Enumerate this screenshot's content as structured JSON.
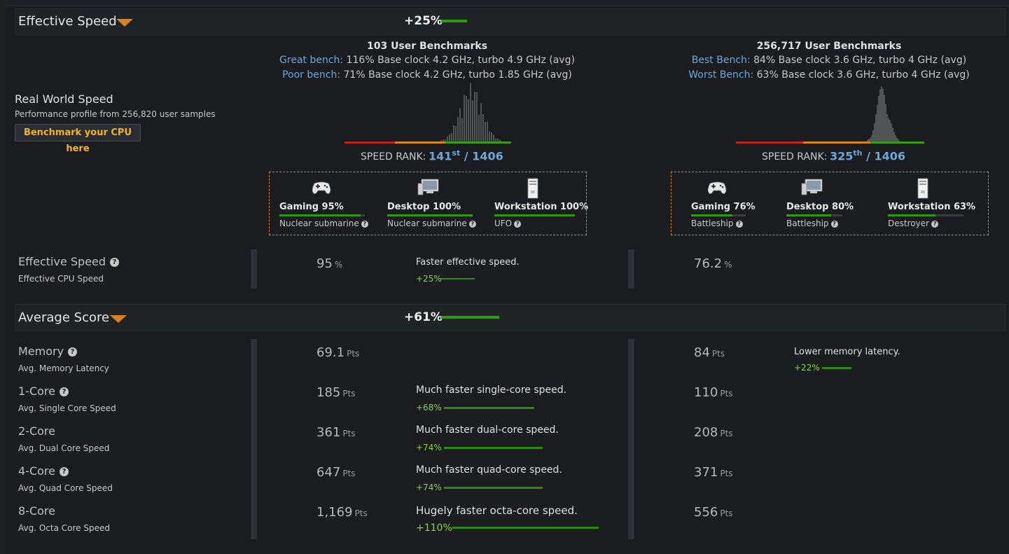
{
  "effective_speed_header": {
    "title": "Effective Speed",
    "pct": "+25%"
  },
  "real_world": {
    "title": "Real World Speed",
    "subtitle": "Performance profile from 256,820 user samples",
    "button": "Benchmark your CPU here"
  },
  "cpu_a": {
    "bench_count": "103 User Benchmarks",
    "best_label": "Great bench:",
    "best_text": " 116% Base clock 4.2 GHz, turbo 4.9 GHz (avg)",
    "worst_label": "Poor bench:",
    "worst_text": " 71% Base clock 4.2 GHz, turbo 1.85 GHz (avg)",
    "rank_label": "SPEED RANK:",
    "rank": "141",
    "rank_suffix": "st",
    "rank_total": " / 1406",
    "categories": [
      {
        "name": "Gaming 95%",
        "fill": 0.95,
        "sub": "Nuclear submarine",
        "icon": "gamepad-icon"
      },
      {
        "name": "Desktop 100%",
        "fill": 1.0,
        "sub": "Nuclear submarine",
        "icon": "desktop-icon"
      },
      {
        "name": "Workstation 100%",
        "fill": 1.0,
        "sub": "UFO",
        "icon": "workstation-icon"
      }
    ]
  },
  "cpu_b": {
    "bench_count": "256,717 User Benchmarks",
    "best_label": "Best Bench:",
    "best_text": " 84% Base clock 3.6 GHz, turbo 4 GHz (avg)",
    "worst_label": "Worst Bench:",
    "worst_text": " 63% Base clock 3.6 GHz, turbo 4 GHz (avg)",
    "rank_label": "SPEED RANK:",
    "rank": "325",
    "rank_suffix": "th",
    "rank_total": " / 1406",
    "categories": [
      {
        "name": "Gaming 76%",
        "fill": 0.76,
        "sub": "Battleship",
        "icon": "gamepad-icon"
      },
      {
        "name": "Desktop 80%",
        "fill": 0.8,
        "sub": "Battleship",
        "icon": "desktop-icon"
      },
      {
        "name": "Workstation 63%",
        "fill": 0.63,
        "sub": "Destroyer",
        "icon": "workstation-icon"
      }
    ]
  },
  "effective_row": {
    "title": "Effective Speed",
    "sub": "Effective CPU Speed",
    "a_val": "95",
    "a_unit": "%",
    "b_val": "76.2",
    "b_unit": "%",
    "cmp_text": "Faster effective speed.",
    "cmp_pct": "+25%"
  },
  "average_score_header": {
    "title": "Average Score",
    "pct": "+61%"
  },
  "score_rows": [
    {
      "title": "Memory",
      "help": true,
      "sub": "Avg. Memory Latency",
      "a": "69.1",
      "b": "84",
      "unit": "Pts",
      "cmp_side": "b",
      "cmp_text": "Lower memory latency.",
      "cmp_pct": "+22%",
      "bar": 0.22
    },
    {
      "title": "1-Core",
      "help": true,
      "sub": "Avg. Single Core Speed",
      "a": "185",
      "b": "110",
      "unit": "Pts",
      "cmp_side": "a",
      "cmp_text": "Much faster single-core speed.",
      "cmp_pct": "+68%",
      "bar": 0.68
    },
    {
      "title": "2-Core",
      "help": false,
      "sub": "Avg. Dual Core Speed",
      "a": "361",
      "b": "208",
      "unit": "Pts",
      "cmp_side": "a",
      "cmp_text": "Much faster dual-core speed.",
      "cmp_pct": "+74%",
      "bar": 0.74
    },
    {
      "title": "4-Core",
      "help": true,
      "sub": "Avg. Quad Core Speed",
      "a": "647",
      "b": "371",
      "unit": "Pts",
      "cmp_side": "a",
      "cmp_text": "Much faster quad-core speed.",
      "cmp_pct": "+74%",
      "bar": 0.74
    },
    {
      "title": "8-Core",
      "help": false,
      "sub": "Avg. Octa Core Speed",
      "a": "1,169",
      "b": "556",
      "unit": "Pts",
      "cmp_side": "a",
      "cmp_text": "Hugely faster octa-core speed.",
      "cmp_pct": "+110%",
      "bar": 1.1
    }
  ]
}
